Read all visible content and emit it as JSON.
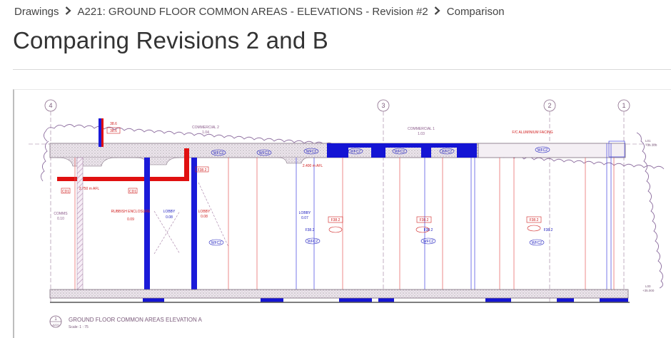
{
  "breadcrumb": {
    "items": [
      {
        "label": "Drawings"
      },
      {
        "label": "A221: GROUND FLOOR COMMON AREAS - ELEVATIONS - Revision #2"
      },
      {
        "label": "Comparison"
      }
    ]
  },
  "page": {
    "title": "Comparing Revisions 2 and B"
  },
  "drawing": {
    "grid_markers": [
      "4",
      "3",
      "2",
      "1"
    ],
    "rooms": [
      {
        "name": "COMMS",
        "code": "0.10"
      },
      {
        "name": "RUBBISH ENCLOSURE",
        "code": "0.09"
      },
      {
        "name": "LOBBY",
        "code": "0.08"
      },
      {
        "name": "LOBBY",
        "code": "0.08"
      },
      {
        "name": "LOBBY",
        "code": "0.07"
      }
    ],
    "annotations": {
      "commercial_1": "COMMERCIAL 2",
      "commercial_1_code": "1.04",
      "commercial_2": "COMMERCIAL 1",
      "commercial_2_code": "1.03",
      "facing_note": "F/C ALUMINIUM FACING",
      "afl_1": "2.750 m AFL",
      "afl_2": "2.400 m AFL",
      "level_top": "L01",
      "level_top_value": "+35.100",
      "level_bottom": "L00",
      "level_bottom_value": "+35.000",
      "tag_wf": "WFC2",
      "tag_f": "F38.2",
      "tag_cd": "CD1",
      "tag_r": "38.6"
    },
    "caption": {
      "number": "1",
      "sheet": "A220",
      "title": "GROUND FLOOR COMMON AREAS ELEVATION A",
      "scale": "Scale: 1 : 75"
    }
  }
}
